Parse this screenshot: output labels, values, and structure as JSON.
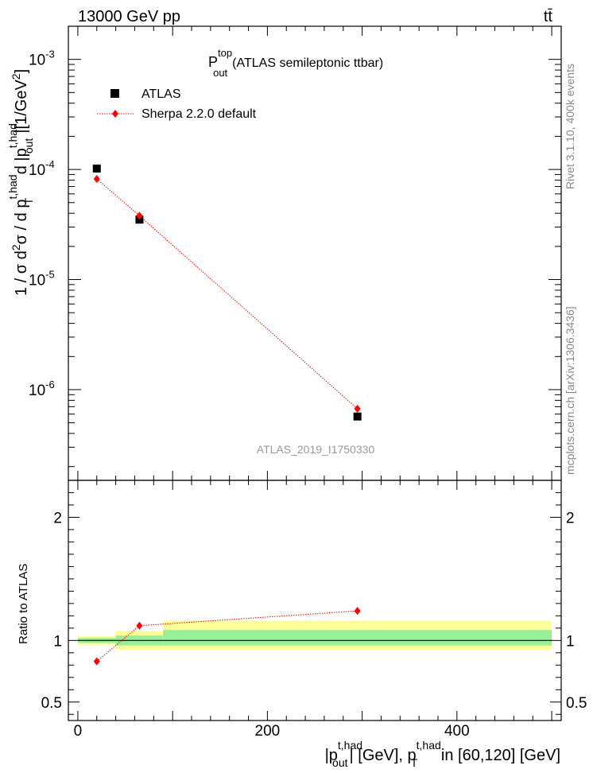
{
  "header": {
    "left": "13000 GeV pp",
    "right": "tt̄"
  },
  "side_labels": {
    "rivet": "Rivet 3.1.10, 400k events",
    "mcplots": "mcplots.cern.ch [arXiv:1306.3436]"
  },
  "chart_data": [
    {
      "type": "scatter",
      "title_main": "P",
      "title_sup": "top",
      "title_sub": "out",
      "title_rest": "(ATLAS semileptonic ttbar)",
      "watermark": "ATLAS_2019_I1750330",
      "ylabel_parts": [
        "1 / σ d",
        "2",
        "σ / d p",
        "t,had",
        "T",
        " d |p",
        "t,had",
        "out",
        "|[1/GeV",
        "2",
        "]"
      ],
      "yscale": "log",
      "ylim": [
        1.5e-07,
        0.002
      ],
      "xlim": [
        -10,
        510
      ],
      "yticks": [
        {
          "value": 1e-06,
          "base": "10",
          "exp": "-6"
        },
        {
          "value": 1e-05,
          "base": "10",
          "exp": "-5"
        },
        {
          "value": 0.0001,
          "base": "10",
          "exp": "-4"
        },
        {
          "value": 0.001,
          "base": "10",
          "exp": "-3"
        }
      ],
      "legend_position": "top-left",
      "series": [
        {
          "name": "ATLAS",
          "color": "#000000",
          "marker": "square",
          "points": [
            {
              "x": 20,
              "y": 0.000102
            },
            {
              "x": 65,
              "y": 3.5e-05
            },
            {
              "x": 295,
              "y": 5.7e-07
            }
          ]
        },
        {
          "name": "Sherpa 2.2.0 default",
          "color": "#ff0000",
          "marker": "diamond",
          "points": [
            {
              "x": 20,
              "y": 8.2e-05
            },
            {
              "x": 65,
              "y": 3.8e-05
            },
            {
              "x": 295,
              "y": 6.7e-07
            }
          ]
        }
      ]
    },
    {
      "type": "line",
      "ylabel": "Ratio to ATLAS",
      "ylim": [
        0.35,
        2.3
      ],
      "xlim": [
        -10,
        510
      ],
      "yticks": [
        0.5,
        1,
        2
      ],
      "xticks": [
        0,
        200,
        400
      ],
      "xlabel_parts": [
        "|p",
        "t,had",
        "out",
        "| [GeV], p",
        "t,had",
        "T",
        " in [60,120] [GeV]"
      ],
      "bins": [
        {
          "x0": 0,
          "x1": 40,
          "yellow": [
            0.965,
            1.035
          ],
          "green": [
            0.98,
            1.02
          ]
        },
        {
          "x0": 40,
          "x1": 90,
          "yellow": [
            0.925,
            1.075
          ],
          "green": [
            0.96,
            1.04
          ]
        },
        {
          "x0": 90,
          "x1": 500,
          "yellow": [
            0.925,
            1.16
          ],
          "green": [
            0.96,
            1.085
          ]
        }
      ],
      "band_colors": {
        "yellow": "#ffff99",
        "green": "#99ee99"
      },
      "series": [
        {
          "name": "Sherpa 2.2.0 default",
          "color": "#ff0000",
          "points": [
            {
              "x": 20,
              "y": 0.83
            },
            {
              "x": 65,
              "y": 1.12
            },
            {
              "x": 295,
              "y": 1.24
            }
          ]
        }
      ]
    }
  ]
}
